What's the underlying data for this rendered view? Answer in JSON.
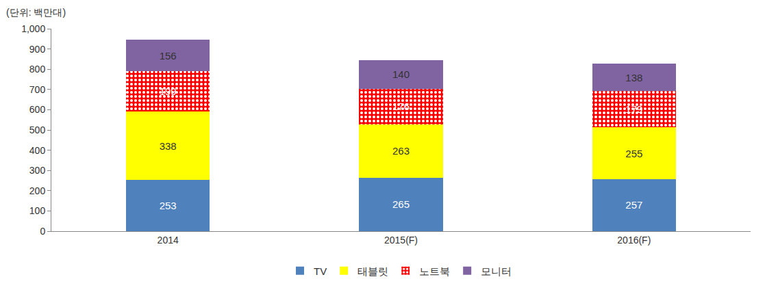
{
  "chart_data": {
    "type": "bar",
    "stacked": true,
    "data_labels": true,
    "grid": false,
    "legend": "bottom",
    "y_label": "(단위: 백만대)",
    "categories": [
      "2014",
      "2015(F)",
      "2016(F)"
    ],
    "series": [
      {
        "name": "TV",
        "color": "#4f81bd",
        "values": [
          253,
          265,
          257
        ]
      },
      {
        "name": "태블릿",
        "color": "#ffff00",
        "values": [
          338,
          263,
          255
        ]
      },
      {
        "name": "노트북",
        "color": "#ff0000",
        "marker": "dotted",
        "values": [
          199,
          176,
          179
        ]
      },
      {
        "name": "모니터",
        "color": "#8064a2",
        "values": [
          156,
          140,
          138
        ]
      }
    ],
    "ylim": [
      0,
      1000
    ],
    "yticks": [
      0,
      100,
      200,
      300,
      400,
      500,
      600,
      700,
      800,
      900,
      {
        "value": 1000,
        "label": "1,000"
      }
    ]
  }
}
